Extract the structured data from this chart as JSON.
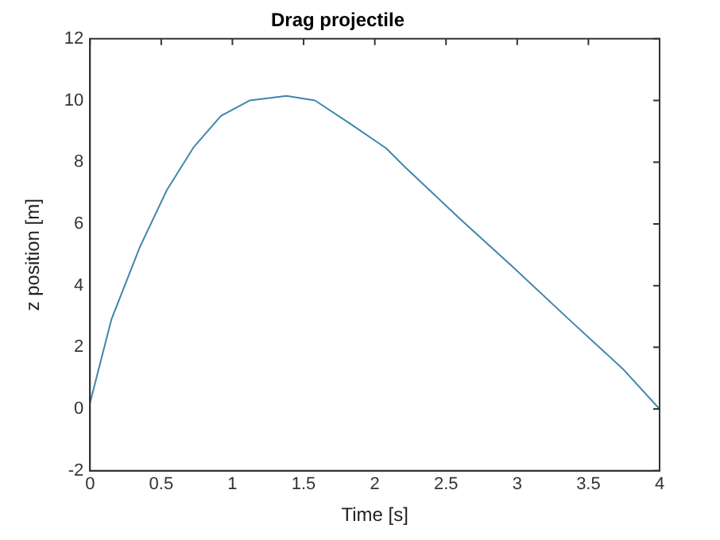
{
  "chart_data": {
    "type": "line",
    "title": "Drag projectile",
    "xlabel": "Time [s]",
    "ylabel": "z position [m]",
    "x": [
      0,
      0.15,
      0.35,
      0.54,
      0.73,
      0.92,
      1.12,
      1.38,
      1.58,
      1.83,
      2.08,
      2.21,
      2.59,
      2.97,
      3.36,
      3.74,
      4.0
    ],
    "series": [
      {
        "color": "#3f86ad",
        "values": [
          0.2,
          2.9,
          5.25,
          7.1,
          8.5,
          9.5,
          10.0,
          10.15,
          10.0,
          9.24,
          8.45,
          7.85,
          6.2,
          4.6,
          2.92,
          1.31,
          0
        ]
      }
    ],
    "xlim": [
      0,
      4
    ],
    "xticks": [
      0,
      0.5,
      1,
      1.5,
      2,
      2.5,
      3,
      3.5,
      4
    ],
    "ylim": [
      -2,
      12
    ],
    "yticks": [
      -2,
      0,
      2,
      4,
      6,
      8,
      10,
      12
    ],
    "grid": false,
    "legend": false,
    "marker": "none",
    "line_style": "solid"
  }
}
